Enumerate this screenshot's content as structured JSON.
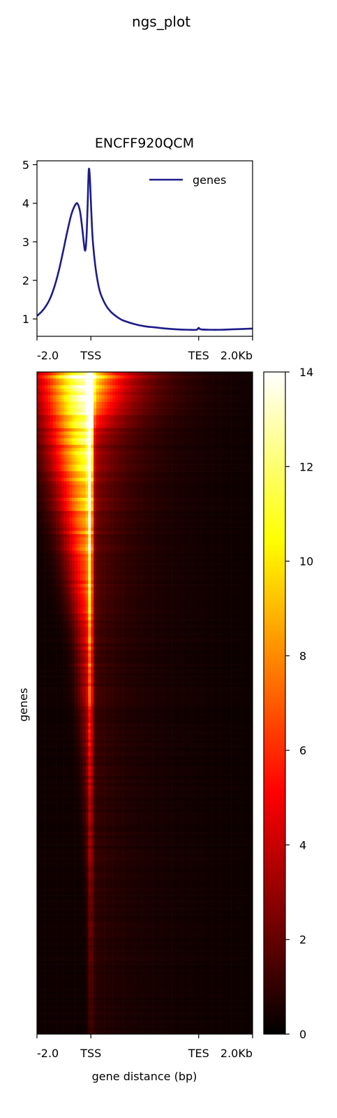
{
  "suptitle": "ngs_plot",
  "chart_data": [
    {
      "type": "line",
      "title": "ENCFF920QCM",
      "xlabel": "",
      "ylabel": "",
      "legend": {
        "placement": "top-right",
        "entries": [
          "genes"
        ]
      },
      "colors": {
        "genes": "#1c1c8a"
      },
      "ylim": [
        0.55,
        5.1
      ],
      "y_ticks": [
        1,
        2,
        3,
        4,
        5
      ],
      "x_tick_labels": [
        "-2.0",
        "TSS",
        "TES",
        "2.0Kb"
      ],
      "x_ticks": [
        0,
        0.25,
        0.75,
        1
      ],
      "x_axis_note": "meta-gene coordinate: 0=-2.0kb, 0.25=TSS, 0.75=TES, 1=+2.0kb",
      "series": [
        {
          "name": "genes",
          "x": [
            0,
            0.02,
            0.04,
            0.06,
            0.08,
            0.1,
            0.12,
            0.14,
            0.16,
            0.18,
            0.19,
            0.2,
            0.21,
            0.22,
            0.225,
            0.23,
            0.235,
            0.24,
            0.245,
            0.25,
            0.255,
            0.26,
            0.27,
            0.28,
            0.29,
            0.3,
            0.32,
            0.34,
            0.36,
            0.38,
            0.4,
            0.45,
            0.5,
            0.55,
            0.6,
            0.65,
            0.7,
            0.74,
            0.75,
            0.76,
            0.8,
            0.85,
            0.9,
            0.95,
            1.0
          ],
          "y": [
            1.08,
            1.18,
            1.32,
            1.52,
            1.82,
            2.22,
            2.72,
            3.25,
            3.72,
            3.98,
            3.97,
            3.78,
            3.35,
            2.85,
            2.8,
            3.15,
            3.95,
            4.85,
            4.7,
            4.05,
            3.4,
            2.95,
            2.4,
            2.02,
            1.75,
            1.58,
            1.35,
            1.2,
            1.1,
            1.02,
            0.96,
            0.87,
            0.81,
            0.78,
            0.75,
            0.73,
            0.72,
            0.72,
            0.77,
            0.73,
            0.72,
            0.72,
            0.73,
            0.74,
            0.75
          ]
        }
      ]
    },
    {
      "type": "heatmap",
      "title": "",
      "xlabel": "gene distance (bp)",
      "ylabel": "genes",
      "x_tick_labels": [
        "-2.0",
        "TSS",
        "TES",
        "2.0Kb"
      ],
      "x_ticks": [
        0,
        0.25,
        0.75,
        1
      ],
      "colorbar": {
        "colormap": "hot",
        "range": [
          0,
          14
        ],
        "ticks": [
          0,
          2,
          4,
          6,
          8,
          10,
          12,
          14
        ]
      },
      "rows": 200,
      "profile": {
        "rank": [
          0.0,
          0.1,
          0.25,
          0.4,
          0.6,
          0.8,
          1.0
        ],
        "upstream_width": [
          0.22,
          0.18,
          0.12,
          0.07,
          0.04,
          0.02,
          0.01
        ],
        "upstream_peak": [
          14,
          11,
          8,
          4.5,
          2.2,
          1.0,
          0.6
        ],
        "tss_peak": [
          14,
          9,
          7,
          5,
          2.5,
          1.2,
          0.6
        ],
        "body_level": [
          13,
          3.5,
          1.8,
          1.0,
          0.7,
          0.5,
          0.3
        ]
      }
    }
  ]
}
